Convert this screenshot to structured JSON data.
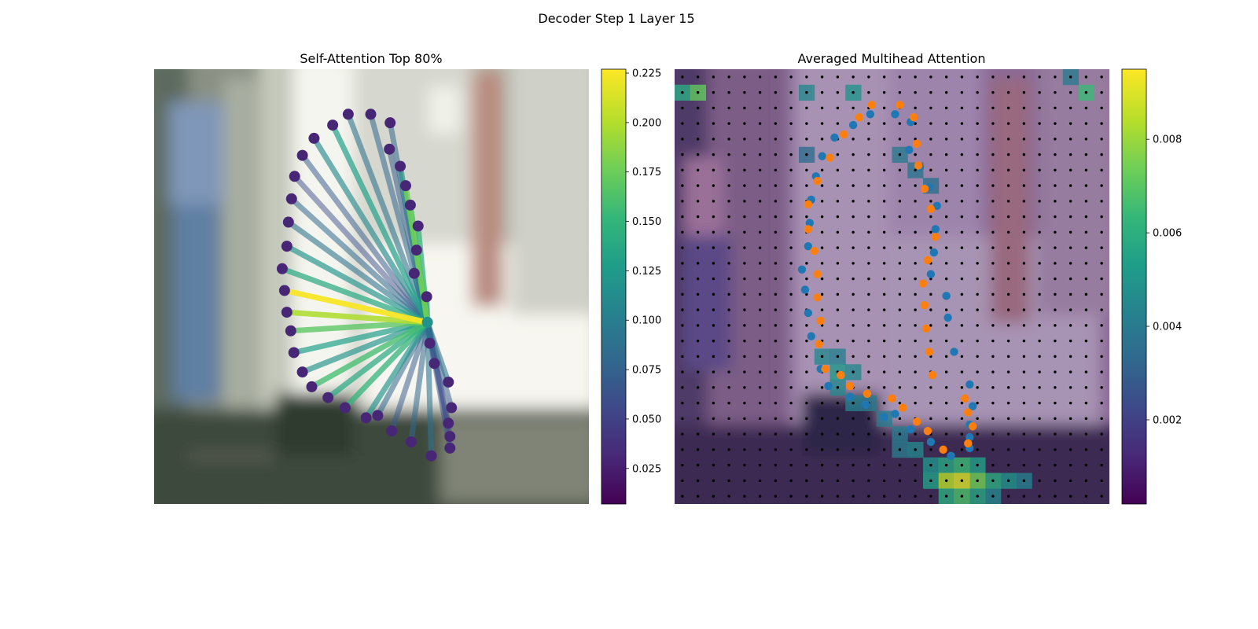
{
  "figure": {
    "suptitle": "Decoder Step 1 Layer 15"
  },
  "colors": {
    "viridis": [
      "#440154",
      "#482878",
      "#3e4989",
      "#31688e",
      "#26828e",
      "#1f9e89",
      "#35b779",
      "#6ece58",
      "#b5de2b",
      "#fde725"
    ],
    "tab_blue": "#1f77b4",
    "tab_orange": "#ff7f0e",
    "grid_dot": "#000000"
  },
  "chart_data": [
    {
      "type": "scatter",
      "title": "Self-Attention Top 80%",
      "description_kind": "keypoint self-attention graph over blurred image",
      "xlim": [
        0,
        56
      ],
      "ylim": [
        56,
        0
      ],
      "query_point": {
        "x": 35.2,
        "y": 32.6,
        "weight": 0.12
      },
      "points": [
        {
          "x": 25.0,
          "y": 5.8,
          "w": 0.03
        },
        {
          "x": 27.9,
          "y": 5.8,
          "w": 0.03
        },
        {
          "x": 30.4,
          "y": 6.9,
          "w": 0.03
        },
        {
          "x": 23.0,
          "y": 7.2,
          "w": 0.03
        },
        {
          "x": 20.6,
          "y": 8.9,
          "w": 0.03
        },
        {
          "x": 19.1,
          "y": 11.1,
          "w": 0.03
        },
        {
          "x": 30.3,
          "y": 10.3,
          "w": 0.03
        },
        {
          "x": 31.7,
          "y": 12.5,
          "w": 0.03
        },
        {
          "x": 18.1,
          "y": 13.8,
          "w": 0.03
        },
        {
          "x": 32.4,
          "y": 15.0,
          "w": 0.03
        },
        {
          "x": 17.7,
          "y": 16.7,
          "w": 0.03
        },
        {
          "x": 33.0,
          "y": 17.5,
          "w": 0.03
        },
        {
          "x": 17.3,
          "y": 19.7,
          "w": 0.03
        },
        {
          "x": 34.0,
          "y": 20.2,
          "w": 0.03
        },
        {
          "x": 17.1,
          "y": 22.8,
          "w": 0.03
        },
        {
          "x": 33.8,
          "y": 23.3,
          "w": 0.03
        },
        {
          "x": 33.5,
          "y": 26.3,
          "w": 0.03
        },
        {
          "x": 16.5,
          "y": 25.7,
          "w": 0.03
        },
        {
          "x": 16.8,
          "y": 28.5,
          "w": 0.03
        },
        {
          "x": 35.1,
          "y": 29.3,
          "w": 0.03
        },
        {
          "x": 17.1,
          "y": 31.3,
          "w": 0.03
        },
        {
          "x": 17.6,
          "y": 33.7,
          "w": 0.03
        },
        {
          "x": 35.5,
          "y": 35.3,
          "w": 0.03
        },
        {
          "x": 18.0,
          "y": 36.5,
          "w": 0.03
        },
        {
          "x": 36.1,
          "y": 37.9,
          "w": 0.03
        },
        {
          "x": 19.1,
          "y": 39.0,
          "w": 0.03
        },
        {
          "x": 20.3,
          "y": 40.9,
          "w": 0.03
        },
        {
          "x": 37.9,
          "y": 40.3,
          "w": 0.03
        },
        {
          "x": 22.4,
          "y": 42.3,
          "w": 0.03
        },
        {
          "x": 24.6,
          "y": 43.6,
          "w": 0.03
        },
        {
          "x": 38.3,
          "y": 43.6,
          "w": 0.03
        },
        {
          "x": 27.3,
          "y": 44.9,
          "w": 0.03
        },
        {
          "x": 28.8,
          "y": 44.6,
          "w": 0.03
        },
        {
          "x": 37.9,
          "y": 45.6,
          "w": 0.03
        },
        {
          "x": 30.6,
          "y": 46.6,
          "w": 0.03
        },
        {
          "x": 38.1,
          "y": 47.3,
          "w": 0.03
        },
        {
          "x": 33.1,
          "y": 48.0,
          "w": 0.03
        },
        {
          "x": 38.1,
          "y": 48.8,
          "w": 0.03
        },
        {
          "x": 35.7,
          "y": 49.8,
          "w": 0.03
        }
      ],
      "edges": [
        {
          "to": 0,
          "w": 0.09
        },
        {
          "to": 1,
          "w": 0.08
        },
        {
          "to": 2,
          "w": 0.08
        },
        {
          "to": 3,
          "w": 0.13
        },
        {
          "to": 4,
          "w": 0.11
        },
        {
          "to": 5,
          "w": 0.07
        },
        {
          "to": 6,
          "w": 0.07
        },
        {
          "to": 7,
          "w": 0.12
        },
        {
          "to": 8,
          "w": 0.06
        },
        {
          "to": 9,
          "w": 0.18
        },
        {
          "to": 10,
          "w": 0.08
        },
        {
          "to": 11,
          "w": 0.16
        },
        {
          "to": 12,
          "w": 0.09
        },
        {
          "to": 13,
          "w": 0.15
        },
        {
          "to": 14,
          "w": 0.12
        },
        {
          "to": 15,
          "w": 0.14
        },
        {
          "to": 16,
          "w": 0.1
        },
        {
          "to": 17,
          "w": 0.14
        },
        {
          "to": 18,
          "w": 0.225
        },
        {
          "to": 19,
          "w": 0.09
        },
        {
          "to": 20,
          "w": 0.2
        },
        {
          "to": 21,
          "w": 0.17
        },
        {
          "to": 22,
          "w": 0.08
        },
        {
          "to": 23,
          "w": 0.13
        },
        {
          "to": 24,
          "w": 0.07
        },
        {
          "to": 25,
          "w": 0.12
        },
        {
          "to": 26,
          "w": 0.16
        },
        {
          "to": 27,
          "w": 0.09
        },
        {
          "to": 28,
          "w": 0.14
        },
        {
          "to": 29,
          "w": 0.15
        },
        {
          "to": 30,
          "w": 0.07
        },
        {
          "to": 31,
          "w": 0.12
        },
        {
          "to": 32,
          "w": 0.08
        },
        {
          "to": 33,
          "w": 0.06
        },
        {
          "to": 34,
          "w": 0.07
        },
        {
          "to": 35,
          "w": 0.06
        },
        {
          "to": 36,
          "w": 0.08
        },
        {
          "to": 37,
          "w": 0.06
        },
        {
          "to": 38,
          "w": 0.09
        }
      ],
      "colorbar": {
        "ticks": [
          0.025,
          0.05,
          0.075,
          0.1,
          0.125,
          0.15,
          0.175,
          0.2,
          0.225
        ],
        "tick_labels": [
          "0.025",
          "0.050",
          "0.075",
          "0.100",
          "0.125",
          "0.150",
          "0.175",
          "0.200",
          "0.225"
        ],
        "min": 0.007,
        "max": 0.227
      }
    },
    {
      "type": "heatmap",
      "title": "Averaged Multihead Attention",
      "grid": {
        "cols": 28,
        "rows": 28
      },
      "highlight_cells": [
        {
          "c": 0,
          "r": 1,
          "v": 0.006
        },
        {
          "c": 1,
          "r": 1,
          "v": 0.0072
        },
        {
          "c": 8,
          "r": 1,
          "v": 0.0045
        },
        {
          "c": 11,
          "r": 1,
          "v": 0.005
        },
        {
          "c": 26,
          "r": 1,
          "v": 0.0065
        },
        {
          "c": 25,
          "r": 0,
          "v": 0.004
        },
        {
          "c": 9,
          "r": 18,
          "v": 0.0045
        },
        {
          "c": 10,
          "r": 18,
          "v": 0.0042
        },
        {
          "c": 10,
          "r": 19,
          "v": 0.0052
        },
        {
          "c": 11,
          "r": 19,
          "v": 0.0045
        },
        {
          "c": 10,
          "r": 20,
          "v": 0.0045
        },
        {
          "c": 11,
          "r": 21,
          "v": 0.0042
        },
        {
          "c": 12,
          "r": 21,
          "v": 0.004
        },
        {
          "c": 13,
          "r": 22,
          "v": 0.004
        },
        {
          "c": 14,
          "r": 23,
          "v": 0.004
        },
        {
          "c": 15,
          "r": 24,
          "v": 0.0045
        },
        {
          "c": 14,
          "r": 24,
          "v": 0.004
        },
        {
          "c": 16,
          "r": 25,
          "v": 0.005
        },
        {
          "c": 17,
          "r": 25,
          "v": 0.0058
        },
        {
          "c": 18,
          "r": 25,
          "v": 0.0065
        },
        {
          "c": 19,
          "r": 25,
          "v": 0.0055
        },
        {
          "c": 16,
          "r": 26,
          "v": 0.0055
        },
        {
          "c": 17,
          "r": 26,
          "v": 0.0085
        },
        {
          "c": 18,
          "r": 26,
          "v": 0.009
        },
        {
          "c": 19,
          "r": 26,
          "v": 0.0075
        },
        {
          "c": 20,
          "r": 26,
          "v": 0.006
        },
        {
          "c": 21,
          "r": 26,
          "v": 0.005
        },
        {
          "c": 22,
          "r": 26,
          "v": 0.0042
        },
        {
          "c": 17,
          "r": 27,
          "v": 0.006
        },
        {
          "c": 18,
          "r": 27,
          "v": 0.0068
        },
        {
          "c": 19,
          "r": 27,
          "v": 0.0058
        },
        {
          "c": 20,
          "r": 27,
          "v": 0.0045
        },
        {
          "c": 14,
          "r": 5,
          "v": 0.004
        },
        {
          "c": 15,
          "r": 6,
          "v": 0.0038
        },
        {
          "c": 16,
          "r": 7,
          "v": 0.0036
        },
        {
          "c": 8,
          "r": 5,
          "v": 0.0035
        }
      ],
      "series": [
        {
          "name": "blue",
          "points": [
            [
              12.6,
              2.9
            ],
            [
              14.2,
              2.9
            ],
            [
              15.2,
              3.4
            ],
            [
              11.5,
              3.6
            ],
            [
              10.3,
              4.4
            ],
            [
              9.5,
              5.6
            ],
            [
              15.1,
              5.2
            ],
            [
              15.8,
              6.3
            ],
            [
              9.1,
              6.9
            ],
            [
              16.4,
              7.6
            ],
            [
              8.8,
              8.4
            ],
            [
              16.9,
              8.8
            ],
            [
              8.7,
              9.9
            ],
            [
              16.8,
              10.3
            ],
            [
              8.6,
              11.4
            ],
            [
              16.7,
              11.8
            ],
            [
              8.2,
              12.9
            ],
            [
              16.5,
              13.2
            ],
            [
              8.4,
              14.2
            ],
            [
              17.5,
              14.6
            ],
            [
              8.6,
              15.7
            ],
            [
              17.6,
              16.0
            ],
            [
              8.8,
              17.2
            ],
            [
              18.0,
              18.2
            ],
            [
              9.4,
              19.3
            ],
            [
              9.9,
              20.4
            ],
            [
              19.0,
              20.3
            ],
            [
              11.3,
              21.1
            ],
            [
              12.3,
              21.6
            ],
            [
              19.2,
              21.7
            ],
            [
              13.5,
              22.4
            ],
            [
              14.2,
              22.2
            ],
            [
              19.0,
              22.9
            ],
            [
              15.2,
              23.2
            ],
            [
              19.0,
              23.7
            ],
            [
              16.5,
              24.0
            ],
            [
              19.0,
              24.4
            ],
            [
              17.8,
              24.9
            ]
          ]
        },
        {
          "name": "orange",
          "points": [
            [
              14.5,
              2.3
            ],
            [
              12.7,
              2.3
            ],
            [
              15.4,
              3.1
            ],
            [
              11.9,
              3.1
            ],
            [
              10.9,
              4.2
            ],
            [
              15.6,
              4.8
            ],
            [
              10.0,
              5.7
            ],
            [
              15.7,
              6.2
            ],
            [
              9.2,
              7.2
            ],
            [
              16.1,
              7.7
            ],
            [
              8.6,
              8.7
            ],
            [
              16.5,
              9.0
            ],
            [
              8.6,
              10.3
            ],
            [
              16.8,
              10.8
            ],
            [
              9.0,
              11.7
            ],
            [
              16.3,
              12.3
            ],
            [
              9.2,
              13.2
            ],
            [
              16.0,
              13.8
            ],
            [
              9.2,
              14.7
            ],
            [
              16.1,
              15.2
            ],
            [
              9.4,
              16.2
            ],
            [
              16.2,
              16.7
            ],
            [
              9.3,
              17.7
            ],
            [
              16.4,
              18.2
            ],
            [
              9.7,
              19.3
            ],
            [
              10.7,
              19.7
            ],
            [
              16.6,
              19.7
            ],
            [
              11.3,
              20.4
            ],
            [
              12.4,
              20.9
            ],
            [
              14.0,
              21.2
            ],
            [
              18.7,
              21.2
            ],
            [
              14.7,
              21.8
            ],
            [
              18.9,
              22.1
            ],
            [
              15.6,
              22.7
            ],
            [
              19.2,
              23.0
            ],
            [
              16.3,
              23.3
            ],
            [
              18.9,
              24.1
            ],
            [
              17.3,
              24.5
            ]
          ]
        }
      ],
      "colorbar": {
        "ticks": [
          0.002,
          0.004,
          0.006,
          0.008
        ],
        "tick_labels": [
          "0.002",
          "0.004",
          "0.006",
          "0.008"
        ],
        "min": 0.0002,
        "max": 0.0095
      }
    }
  ]
}
